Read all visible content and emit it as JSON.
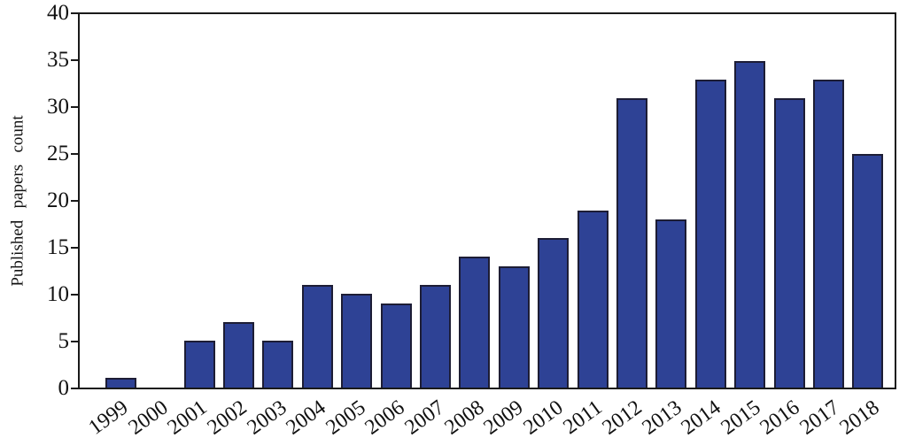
{
  "chart_data": {
    "type": "bar",
    "title": "",
    "xlabel": "",
    "ylabel": "Published papers count",
    "categories": [
      "1999",
      "2000",
      "2001",
      "2002",
      "2003",
      "2004",
      "2005",
      "2006",
      "2007",
      "2008",
      "2009",
      "2010",
      "2011",
      "2012",
      "2013",
      "2014",
      "2015",
      "2016",
      "2017",
      "2018"
    ],
    "values": [
      1,
      0,
      5,
      7,
      5,
      11,
      10,
      9,
      11,
      14,
      13,
      16,
      19,
      31,
      18,
      33,
      35,
      31,
      33,
      25
    ],
    "ylim": [
      0,
      40
    ],
    "yticks": [
      0,
      5,
      10,
      15,
      20,
      25,
      30,
      35,
      40
    ],
    "grid": false,
    "legend": null,
    "x_tick_rotation_deg": 36,
    "bar_fill_color": "#2e4295",
    "bar_border_color": "#1d1d35",
    "axis_color": "#1a1a1a",
    "text_color": "#111111",
    "background_color": "#ffffff"
  }
}
